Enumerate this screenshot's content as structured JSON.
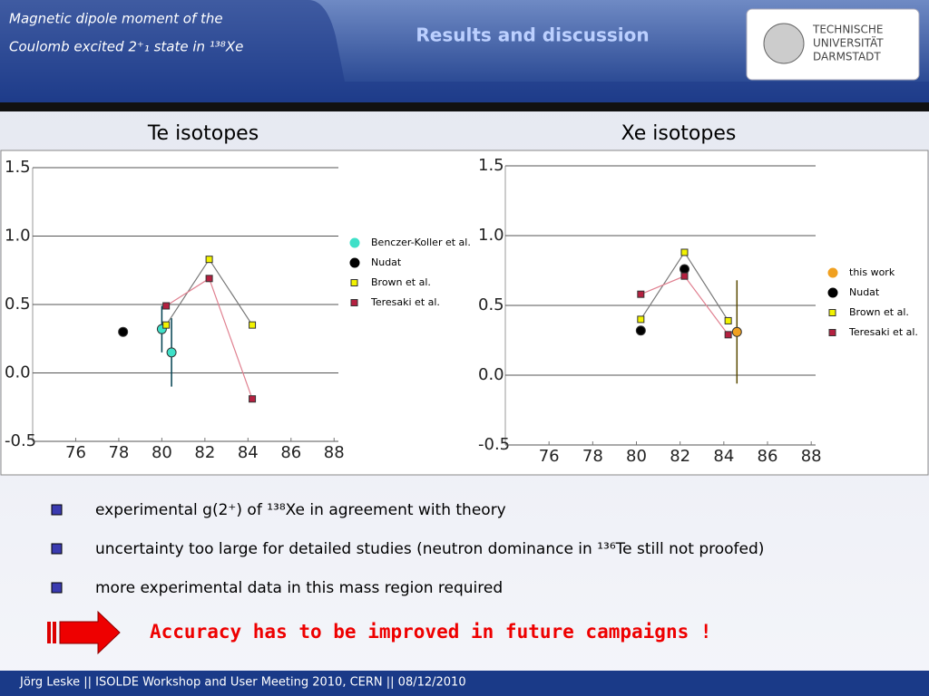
{
  "header": {
    "title_line1": "Magnetic dipole moment of the",
    "title_line2": "Coulomb excited 2⁺₁ state in ¹³⁸Xe",
    "section": "Results and discussion",
    "logo": [
      "TECHNISCHE",
      "UNIVERSITÄT",
      "DARMSTADT"
    ]
  },
  "chart_data": [
    {
      "type": "scatter",
      "title": "Te isotopes",
      "xlim": [
        74,
        88.2
      ],
      "ylim": [
        -0.5,
        1.5
      ],
      "xticks": [
        76,
        78,
        80,
        82,
        84,
        86,
        88
      ],
      "yticks": [
        -0.5,
        {
          "value": 0,
          "label": "0.0"
        },
        0.5,
        {
          "value": 1,
          "label": "1.0"
        },
        1.5
      ],
      "grid": true,
      "legend": "right",
      "series": [
        {
          "name": "Benczer-Koller et al.",
          "color": "#3ee0c8",
          "marker": "circle",
          "connected": false,
          "x": [
            80,
            80.45
          ],
          "values": [
            0.32,
            0.15
          ],
          "errors": [
            0.17,
            0.25
          ]
        },
        {
          "name": "Nudat",
          "color": "#000000",
          "marker": "circle",
          "connected": false,
          "x": [
            78.2
          ],
          "values": [
            0.3
          ]
        },
        {
          "name": "Brown et al.",
          "color": "#f2f200",
          "marker": "square",
          "connected": true,
          "x": [
            80.2,
            82.2,
            84.2
          ],
          "values": [
            0.35,
            0.83,
            0.35
          ]
        },
        {
          "name": "Teresaki  et al.",
          "color": "#b52040",
          "marker": "square",
          "connected": true,
          "x": [
            80.2,
            82.2,
            84.2
          ],
          "values": [
            0.49,
            0.69,
            -0.19
          ]
        }
      ]
    },
    {
      "type": "scatter",
      "title": "Xe isotopes",
      "xlim": [
        74,
        88.2
      ],
      "ylim": [
        -0.5,
        1.5
      ],
      "xticks": [
        76,
        78,
        80,
        82,
        84,
        86,
        88
      ],
      "yticks": [
        -0.5,
        {
          "value": 0,
          "label": "0.0"
        },
        0.5,
        {
          "value": 1,
          "label": "1.0"
        },
        1.5
      ],
      "grid": true,
      "legend": "right",
      "series": [
        {
          "name": "this work",
          "color": "#f0a020",
          "marker": "circle",
          "connected": false,
          "x": [
            84.6
          ],
          "values": [
            0.31
          ],
          "errors": [
            0.37
          ]
        },
        {
          "name": "Nudat",
          "color": "#000000",
          "marker": "circle",
          "connected": false,
          "x": [
            80.2,
            82.2
          ],
          "values": [
            0.32,
            0.76
          ]
        },
        {
          "name": "Brown et al.",
          "color": "#f2f200",
          "marker": "square",
          "connected": true,
          "x": [
            80.2,
            82.2,
            84.2
          ],
          "values": [
            0.4,
            0.88,
            0.39
          ]
        },
        {
          "name": "Teresaki  et al.",
          "color": "#b52040",
          "marker": "square",
          "connected": true,
          "x": [
            80.2,
            82.2,
            84.2
          ],
          "values": [
            0.58,
            0.71,
            0.29
          ]
        }
      ]
    }
  ],
  "bullets": [
    "experimental g(2⁺) of ¹³⁸Xe in agreement with theory",
    "uncertainty too large for detailed studies (neutron dominance in ¹³⁶Te still not proofed)",
    "more experimental data in this mass region required"
  ],
  "conclusion": "Accuracy has to be improved in future campaigns !",
  "footer": "Jörg Leske ||  ISOLDE Workshop and User Meeting 2010, CERN || 08/12/2010"
}
